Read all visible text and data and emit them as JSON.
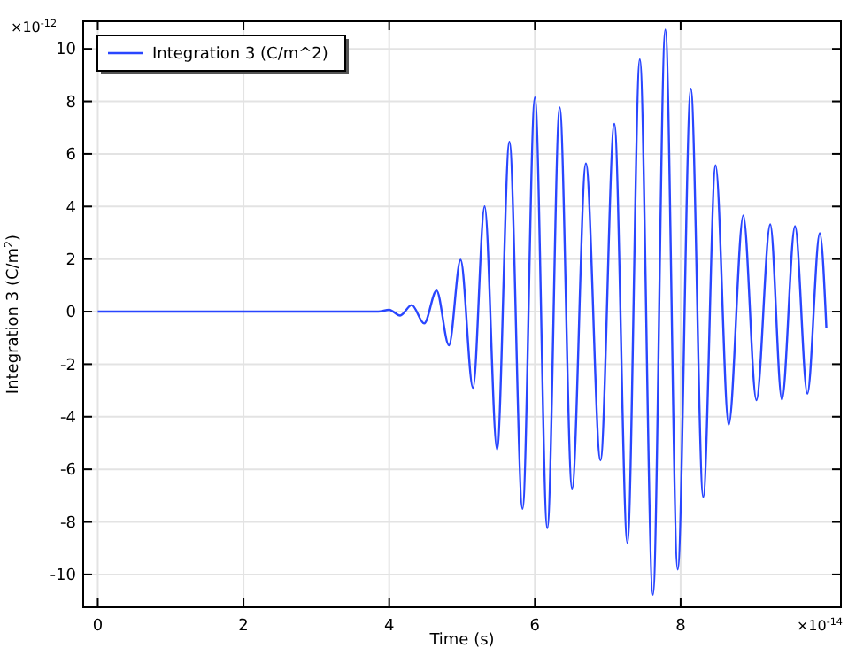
{
  "chart_data": {
    "type": "line",
    "xlabel": "Time (s)",
    "ylabel": "Integration 3 (C/m$^{2}$)",
    "annotations": [
      "×10$^{-12}$",
      "×10$^{-14}$"
    ],
    "xlim": [
      -0.2,
      10.2
    ],
    "ylim": [
      -11.25,
      11.05
    ],
    "xticks": [
      0,
      2,
      4,
      6,
      8
    ],
    "yticks": [
      -10,
      -8,
      -6,
      -4,
      -2,
      0,
      2,
      4,
      6,
      8,
      10
    ],
    "grid": true,
    "legend": "top left",
    "line_style": "solid",
    "marker": "none",
    "series": [
      {
        "name": "Integration 3 (C/m^2)",
        "color": "#2946ff",
        "x": [
          0,
          1,
          2,
          3,
          3.6,
          3.85,
          4.0,
          4.15,
          4.31,
          4.48,
          4.65,
          4.82,
          4.98,
          5.15,
          5.31,
          5.48,
          5.65,
          5.83,
          6.0,
          6.17,
          6.34,
          6.51,
          6.7,
          6.9,
          7.09,
          7.27,
          7.44,
          7.62,
          7.79,
          7.96,
          8.14,
          8.31,
          8.48,
          8.66,
          8.86,
          9.04,
          9.23,
          9.39,
          9.57,
          9.74,
          9.91,
          10.0
        ],
        "values": [
          0,
          0,
          0,
          0,
          0,
          0,
          0.07,
          -0.15,
          0.25,
          -0.45,
          0.8,
          -1.28,
          1.97,
          -2.9,
          4.0,
          -5.25,
          6.46,
          -7.5,
          8.15,
          -8.24,
          7.77,
          -6.73,
          5.64,
          -5.66,
          7.14,
          -8.8,
          9.6,
          -10.77,
          10.73,
          -9.81,
          8.48,
          -7.05,
          5.57,
          -4.31,
          3.66,
          -3.37,
          3.32,
          -3.35,
          3.25,
          -3.12,
          2.98,
          -0.61
        ]
      }
    ]
  }
}
